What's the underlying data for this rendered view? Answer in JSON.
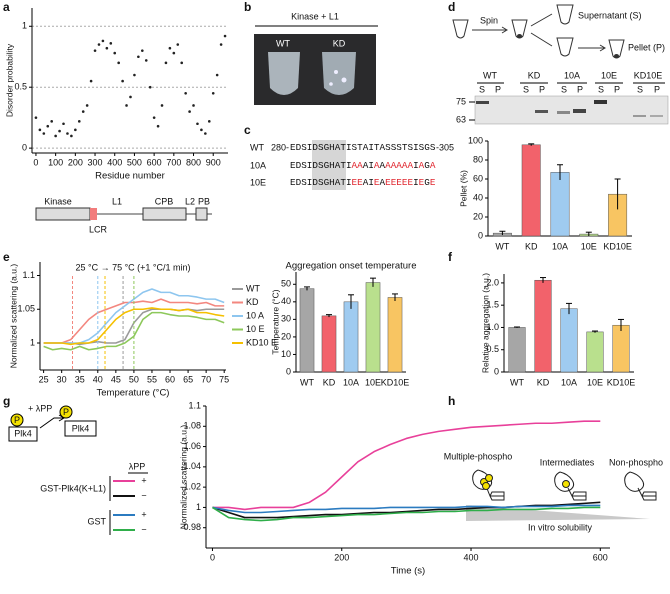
{
  "panel_labels": [
    "a",
    "b",
    "c",
    "d",
    "e",
    "f",
    "g",
    "h"
  ],
  "chart_data": [
    {
      "type": "scatter",
      "xlabel": "Residue number",
      "ylabel": "Disorder probability",
      "color": "#222",
      "x": [
        0,
        20,
        40,
        60,
        80,
        100,
        120,
        140,
        160,
        180,
        200,
        220,
        240,
        260,
        280,
        300,
        320,
        340,
        360,
        380,
        400,
        420,
        440,
        460,
        480,
        500,
        520,
        540,
        560,
        580,
        600,
        620,
        640,
        660,
        680,
        700,
        720,
        740,
        760,
        780,
        800,
        820,
        840,
        860,
        880,
        900,
        920,
        940,
        960
      ],
      "values": [
        0.25,
        0.15,
        0.12,
        0.18,
        0.22,
        0.1,
        0.14,
        0.2,
        0.12,
        0.1,
        0.15,
        0.22,
        0.3,
        0.35,
        0.55,
        0.8,
        0.85,
        0.88,
        0.82,
        0.86,
        0.78,
        0.7,
        0.55,
        0.35,
        0.42,
        0.6,
        0.75,
        0.8,
        0.72,
        0.5,
        0.25,
        0.18,
        0.35,
        0.7,
        0.82,
        0.78,
        0.85,
        0.7,
        0.45,
        0.3,
        0.35,
        0.2,
        0.15,
        0.12,
        0.22,
        0.45,
        0.6,
        0.85,
        0.92
      ],
      "xlim": [
        -20,
        975
      ],
      "xticks": [
        0,
        100,
        200,
        300,
        400,
        500,
        600,
        700,
        800,
        900
      ],
      "ylim": [
        -0.04,
        1.15
      ],
      "yticks": [
        0,
        0.5,
        1
      ],
      "grid": true
    },
    {
      "type": "bar",
      "ylabel": "Pellet (%)",
      "categories": [
        "WT",
        "KD",
        "10A",
        "10E",
        "KD10E"
      ],
      "values": [
        3,
        96,
        67,
        2,
        44
      ],
      "errors": [
        2,
        1,
        8,
        2,
        16
      ],
      "colors": [
        "#a6a6a6",
        "#f2626b",
        "#9fcbf0",
        "#b9e08d",
        "#f8c562"
      ],
      "ylim": [
        0,
        100
      ],
      "yticks": [
        0,
        20,
        40,
        60,
        80,
        100
      ]
    },
    {
      "type": "line",
      "xlabel": "Temperature (°C)",
      "ylabel": "Normalized scattering (a.u.)",
      "annotation": "25 °C → 75 °C (+1 °C/1 min)",
      "x": [
        25,
        27.5,
        30,
        32.5,
        35,
        37.5,
        40,
        42.5,
        45,
        47.5,
        50,
        52.5,
        55,
        57.5,
        60,
        62.5,
        65,
        67.5,
        70,
        72.5,
        75
      ],
      "series": [
        {
          "name": "WT",
          "color": "#9a9a9a",
          "onset": 47,
          "values": [
            1.0,
            1.0,
            1.0,
            1.0,
            0.998,
            1.0,
            1.002,
            1.0,
            1.0,
            1.005,
            1.03,
            1.045,
            1.05,
            1.05,
            1.05,
            1.048,
            1.05,
            1.048,
            1.05,
            1.05,
            1.05
          ]
        },
        {
          "name": "KD",
          "color": "#f3877f",
          "onset": 33,
          "values": [
            1.0,
            1.0,
            1.0,
            1.005,
            1.02,
            1.035,
            1.045,
            1.05,
            1.055,
            1.06,
            1.06,
            1.062,
            1.06,
            1.065,
            1.06,
            1.06,
            1.06,
            1.058,
            1.06,
            1.055,
            1.055
          ]
        },
        {
          "name": "10 A",
          "color": "#8ec6ef",
          "onset": 40,
          "values": [
            1.0,
            1.0,
            1.0,
            1.0,
            1.0,
            1.005,
            1.015,
            1.03,
            1.045,
            1.055,
            1.065,
            1.075,
            1.08,
            1.075,
            1.075,
            1.07,
            1.07,
            1.068,
            1.065,
            1.065,
            1.06
          ]
        },
        {
          "name": "10 E",
          "color": "#8dc85b",
          "onset": 50,
          "values": [
            0.995,
            0.99,
            0.992,
            0.99,
            0.995,
            0.99,
            0.992,
            0.995,
            0.995,
            1.0,
            1.01,
            1.035,
            1.045,
            1.045,
            1.042,
            1.04,
            1.04,
            1.038,
            1.035,
            1.035,
            1.03
          ]
        },
        {
          "name": "KD10 E",
          "color": "#f5c000",
          "onset": 42,
          "values": [
            1.0,
            1.0,
            1.0,
            0.998,
            1.0,
            1.0,
            1.005,
            1.02,
            1.035,
            1.045,
            1.05,
            1.05,
            1.052,
            1.05,
            1.05,
            1.048,
            1.05,
            1.045,
            1.045,
            1.042,
            1.04
          ]
        }
      ],
      "xlim": [
        24,
        75.5
      ],
      "xticks": [
        25,
        30,
        35,
        40,
        45,
        50,
        55,
        60,
        65,
        70,
        75
      ],
      "ylim": [
        0.96,
        1.12
      ],
      "yticks": [
        1,
        1.05,
        1.1
      ]
    },
    {
      "type": "bar",
      "title": "Aggregation onset temperature",
      "ylabel": "Temperature (°C)",
      "categories": [
        "WT",
        "KD",
        "10A",
        "10E",
        "KD10E"
      ],
      "values": [
        47.5,
        32,
        40,
        51,
        42.5
      ],
      "errors": [
        1,
        0.7,
        4,
        2.5,
        2
      ],
      "colors": [
        "#a6a6a6",
        "#f2626b",
        "#9fcbf0",
        "#b9e08d",
        "#f8c562"
      ],
      "ylim": [
        0,
        57
      ],
      "yticks": [
        0,
        10,
        20,
        30,
        40,
        50
      ]
    },
    {
      "type": "bar",
      "ylabel": "Relative aggregation (a.u.)",
      "categories": [
        "WT",
        "KD",
        "10A",
        "10E",
        "KD10E"
      ],
      "values": [
        1.0,
        2.06,
        1.42,
        0.9,
        1.05
      ],
      "errors": [
        0.01,
        0.06,
        0.12,
        0.02,
        0.13
      ],
      "colors": [
        "#a6a6a6",
        "#f2626b",
        "#9fcbf0",
        "#b9e08d",
        "#f8c562"
      ],
      "ylim": [
        0,
        2.2
      ],
      "yticks": [
        0,
        0.5,
        {
          "value": 1,
          "label": "1.0"
        },
        1.5,
        {
          "value": 2,
          "label": "2.0"
        }
      ]
    },
    {
      "type": "line",
      "xlabel": "Time (s)",
      "ylabel": "Normalized scattering (a.u.)",
      "x": [
        0,
        25,
        50,
        75,
        100,
        125,
        150,
        175,
        200,
        225,
        250,
        275,
        300,
        325,
        350,
        375,
        400,
        425,
        450,
        475,
        500,
        525,
        550,
        575,
        600
      ],
      "series": [
        {
          "color": "#e8409a",
          "values": [
            1.0,
            1.0,
            0.998,
            1.0,
            1.0,
            1.0,
            1.005,
            1.015,
            1.03,
            1.045,
            1.055,
            1.062,
            1.068,
            1.072,
            1.075,
            1.077,
            1.079,
            1.08,
            1.081,
            1.082,
            1.083,
            1.083,
            1.084,
            1.085,
            1.085
          ]
        },
        {
          "color": "#111111",
          "values": [
            1.0,
            0.995,
            0.99,
            0.99,
            0.99,
            0.991,
            0.992,
            0.993,
            0.993,
            0.994,
            0.995,
            0.995,
            0.996,
            0.997,
            0.998,
            0.998,
            0.999,
            1.0,
            1.0,
            1.001,
            1.002,
            1.002,
            1.003,
            1.004,
            1.005
          ]
        },
        {
          "color": "#2b7bc0",
          "values": [
            1.0,
            0.997,
            0.995,
            0.995,
            0.996,
            0.997,
            0.998,
            0.998,
            0.999,
            0.999,
            0.999,
            1.0,
            1.0,
            1.0,
            1.0,
            1.0,
            1.001,
            1.001,
            1.0,
            1.001,
            1.001,
            1.001,
            1.002,
            1.002,
            1.002
          ]
        },
        {
          "color": "#2fae4a",
          "values": [
            1.0,
            0.99,
            0.988,
            0.987,
            0.988,
            0.99,
            0.99,
            0.991,
            0.992,
            0.993,
            0.993,
            0.994,
            0.995,
            0.995,
            0.996,
            0.996,
            0.997,
            0.997,
            0.998,
            0.998,
            0.998,
            0.999,
            0.999,
            1.0,
            1.0
          ]
        }
      ],
      "xlim": [
        -10,
        615
      ],
      "xticks": [
        0,
        200,
        400,
        600
      ],
      "ylim": [
        0.96,
        1.1
      ],
      "yticks": [
        0.98,
        1,
        1.02,
        1.04,
        1.06,
        1.08,
        1.1
      ]
    }
  ],
  "diagrams": {
    "a_domains": {
      "labels": [
        "Kinase",
        "L1",
        "CPB",
        "L2",
        "PB"
      ],
      "lcr": "LCR"
    },
    "b": {
      "header": "Kinase + L1",
      "lanes": [
        "WT",
        "KD"
      ]
    },
    "c": {
      "rows": [
        {
          "name": "WT",
          "start": "280-",
          "sequence": "EDSIDSGHATISTAITASSSTSISGS",
          "end": "-305"
        },
        {
          "name": "10A",
          "sequence": "EDSIDSGHATIAAAIAAAAAAAIAGA"
        },
        {
          "name": "10E",
          "sequence": "EDSIDSGHATIEEAIEAEEEEEIEGE"
        }
      ]
    },
    "d_scheme": {
      "spin": "Spin",
      "supernatant": "Supernatant (S)",
      "pellet": "Pellet (P)"
    },
    "d_gel": {
      "lanes": [
        "WT",
        "KD",
        "10A",
        "10E",
        "KD10E"
      ],
      "fractions": [
        "S",
        "P"
      ],
      "markers": [
        75,
        63
      ]
    },
    "g_scheme": {
      "phospho": "P",
      "treatment": "+ λPP",
      "protein": "Plk4",
      "column": "λPP",
      "groups": [
        {
          "name": "GST-Plk4(K+L1)",
          "signs": [
            "+",
            "−"
          ]
        },
        {
          "name": "GST",
          "signs": [
            "+",
            "−"
          ]
        }
      ]
    },
    "h": {
      "states": [
        "Multiple-phospho",
        "Intermediates",
        "Non-phospho"
      ],
      "axis": "In vitro solubility"
    }
  }
}
